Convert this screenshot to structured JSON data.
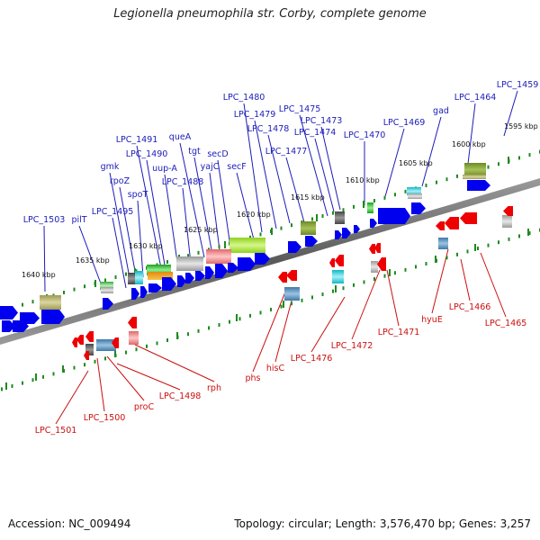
{
  "title": "Legionella pneumophila str. Corby, complete genome",
  "footer": {
    "accession": "Accession: NC_009494",
    "summary": "Topology: circular; Length: 3,576,470 bp; Genes: 3,257"
  },
  "colors": {
    "backbone": "#7f7f7f",
    "forward_gene": "#0000ee",
    "reverse_gene": "#ee0000",
    "forward_label": "#1c1cb8",
    "reverse_label": "#cc1010",
    "tick": "#1e8a1e"
  },
  "scale_labels": [
    "1595 kbp",
    "1600 kbp",
    "1605 kbp",
    "1610 kbp",
    "1615 kbp",
    "1620 kbp",
    "1625 kbp",
    "1630 kbp",
    "1635 kbp",
    "1640 kbp"
  ],
  "forward_genes": [
    "LPC_1459",
    "LPC_1464",
    "gad",
    "LPC_1469",
    "LPC_1470",
    "LPC_1473",
    "LPC_1474",
    "LPC_1475",
    "LPC_1477",
    "LPC_1478",
    "LPC_1479",
    "LPC_1480",
    "secF",
    "secD",
    "yajC",
    "tgt",
    "queA",
    "uup-A",
    "LPC_1488",
    "LPC_1490",
    "LPC_1491",
    "spoT",
    "rpoZ",
    "gmk",
    "LPC_1495",
    "pilT",
    "LPC_1503"
  ],
  "reverse_genes": [
    "LPC_1465",
    "LPC_1466",
    "hyuE",
    "LPC_1471",
    "LPC_1472",
    "LPC_1476",
    "hisC",
    "phs",
    "rph",
    "LPC_1498",
    "proC",
    "LPC_1500",
    "LPC_1501"
  ]
}
